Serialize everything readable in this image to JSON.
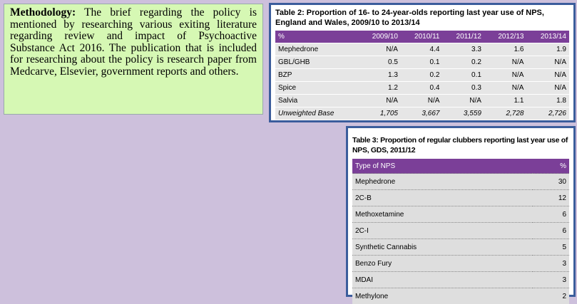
{
  "methodology": {
    "label": "Methodology:",
    "text": "The brief regarding the policy is mentioned by researching various exiting literature regarding review and impact of Psychoactive Substance Act 2016. The publication that is included for researching about the policy is research paper from Medcarve, Elsevier, government reports and others."
  },
  "table2": {
    "title": "Table 2: Proportion of 16- to 24-year-olds reporting last year use of NPS, England and Wales, 2009/10 to 2013/14",
    "header": [
      "%",
      "2009/10",
      "2010/11",
      "2011/12",
      "2012/13",
      "2013/14"
    ],
    "rows": [
      [
        "Mephedrone",
        "N/A",
        "4.4",
        "3.3",
        "1.6",
        "1.9"
      ],
      [
        "GBL/GHB",
        "0.5",
        "0.1",
        "0.2",
        "N/A",
        "N/A"
      ],
      [
        "BZP",
        "1.3",
        "0.2",
        "0.1",
        "N/A",
        "N/A"
      ],
      [
        "Spice",
        "1.2",
        "0.4",
        "0.3",
        "N/A",
        "N/A"
      ],
      [
        "Salvia",
        "N/A",
        "N/A",
        "N/A",
        "1.1",
        "1.8"
      ],
      [
        "Unweighted Base",
        "1,705",
        "3,667",
        "3,559",
        "2,728",
        "2,726"
      ]
    ]
  },
  "table3": {
    "title": "Table 3: Proportion of regular clubbers reporting last year use of NPS, GDS, 2011/12",
    "header": [
      "Type of NPS",
      "%"
    ],
    "rows": [
      [
        "Mephedrone",
        "30"
      ],
      [
        "2C-B",
        "12"
      ],
      [
        "Methoxetamine",
        "6"
      ],
      [
        "2C-I",
        "6"
      ],
      [
        "Synthetic Cannabis",
        "5"
      ],
      [
        "Benzo Fury",
        "3"
      ],
      [
        "MDAI",
        "3"
      ],
      [
        "Methylone",
        "2"
      ]
    ]
  }
}
